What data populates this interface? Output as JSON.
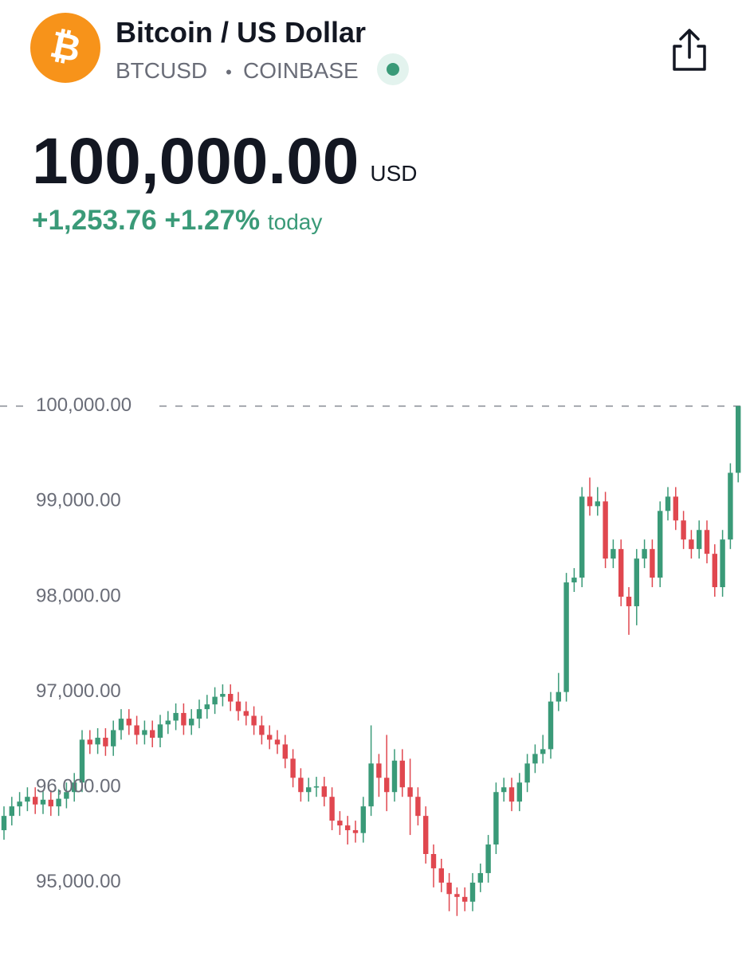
{
  "header": {
    "title": "Bitcoin / US Dollar",
    "symbol": "BTCUSD",
    "separator": "•",
    "exchange": "COINBASE",
    "logo": "₿"
  },
  "price": {
    "value": "100,000.00",
    "currency": "USD",
    "change": "+1,253.76",
    "change_percent": "+1.27%",
    "period": "today"
  },
  "chart_data": {
    "type": "candlestick",
    "up_color": "#3a9a78",
    "down_color": "#e0474f",
    "ylim": [
      94230,
      100750
    ],
    "yticks": [
      {
        "value": 95000,
        "label": "95,000.00"
      },
      {
        "value": 96000,
        "label": "96,000.00"
      },
      {
        "value": 97000,
        "label": "97,000.00"
      },
      {
        "value": 98000,
        "label": "98,000.00"
      },
      {
        "value": 99000,
        "label": "99,000.00"
      },
      {
        "value": 100000,
        "label": "100,000.00"
      }
    ],
    "open": [
      95550,
      95700,
      95800,
      95850,
      95900,
      95820,
      95870,
      95800,
      95880,
      95950,
      96050,
      96500,
      96450,
      96520,
      96430,
      96600,
      96720,
      96650,
      96550,
      96600,
      96520,
      96660,
      96700,
      96780,
      96650,
      96720,
      96820,
      96870,
      96950,
      96980,
      96900,
      96800,
      96750,
      96650,
      96550,
      96500,
      96450,
      96300,
      96100,
      95950,
      96000,
      96010,
      95900,
      95650,
      95600,
      95550,
      95520,
      95800,
      96250,
      96100,
      95950,
      96280,
      96000,
      95900,
      95700,
      95300,
      95150,
      95000,
      94880,
      94850,
      94800,
      95000,
      95100,
      95400,
      95950,
      96000,
      95850,
      96050,
      96250,
      96350,
      96400,
      96900,
      97000,
      98150,
      98200,
      99050,
      98950,
      99000,
      98400,
      98500,
      98000,
      97900,
      98400,
      98500,
      98200,
      98900,
      99050,
      98800,
      98600,
      98500,
      98700,
      98450,
      98100,
      98600,
      99300
    ],
    "high": [
      95800,
      95900,
      95950,
      96000,
      96000,
      95970,
      95970,
      95980,
      96050,
      96150,
      96600,
      96600,
      96620,
      96620,
      96700,
      96820,
      96820,
      96750,
      96700,
      96700,
      96760,
      96800,
      96880,
      96880,
      96820,
      96920,
      96970,
      97050,
      97080,
      97080,
      97000,
      96900,
      96850,
      96750,
      96650,
      96600,
      96550,
      96400,
      96200,
      96100,
      96110,
      96110,
      96000,
      95750,
      95700,
      95650,
      95900,
      96650,
      96350,
      96550,
      96400,
      96400,
      96300,
      96000,
      95800,
      95400,
      95250,
      95100,
      94950,
      94950,
      95100,
      95200,
      95500,
      96050,
      96100,
      96100,
      96150,
      96350,
      96450,
      96550,
      97000,
      97200,
      98250,
      98300,
      99150,
      99250,
      99150,
      99100,
      98600,
      98600,
      98100,
      98500,
      98600,
      98600,
      99000,
      99150,
      99150,
      98900,
      98700,
      98800,
      98800,
      98550,
      98700,
      99400,
      100000
    ],
    "low": [
      95450,
      95600,
      95700,
      95750,
      95720,
      95720,
      95700,
      95700,
      95780,
      95850,
      95950,
      96350,
      96350,
      96330,
      96330,
      96500,
      96550,
      96450,
      96450,
      96420,
      96420,
      96560,
      96600,
      96550,
      96550,
      96620,
      96720,
      96770,
      96850,
      96800,
      96700,
      96650,
      96550,
      96450,
      96400,
      96350,
      96200,
      96000,
      95850,
      95850,
      95900,
      95800,
      95550,
      95500,
      95400,
      95420,
      95420,
      95700,
      95900,
      95750,
      95850,
      95900,
      95500,
      95600,
      95200,
      94950,
      94900,
      94700,
      94650,
      94700,
      94700,
      94900,
      95000,
      95300,
      95850,
      95750,
      95750,
      95950,
      96150,
      96250,
      96300,
      96800,
      96900,
      98050,
      98100,
      98850,
      98850,
      98300,
      98300,
      97900,
      97600,
      97700,
      98300,
      98100,
      98100,
      98800,
      98700,
      98500,
      98400,
      98400,
      98350,
      98000,
      98000,
      98500,
      99200
    ],
    "close": [
      95700,
      95800,
      95850,
      95900,
      95820,
      95870,
      95800,
      95880,
      95950,
      96050,
      96500,
      96450,
      96520,
      96430,
      96600,
      96720,
      96650,
      96550,
      96600,
      96520,
      96660,
      96700,
      96780,
      96650,
      96720,
      96820,
      96870,
      96950,
      96980,
      96900,
      96800,
      96750,
      96650,
      96550,
      96500,
      96450,
      96300,
      96100,
      95950,
      96000,
      96010,
      95900,
      95650,
      95600,
      95550,
      95520,
      95800,
      96250,
      96100,
      95950,
      96280,
      96000,
      95900,
      95700,
      95300,
      95150,
      95000,
      94880,
      94850,
      94800,
      95000,
      95100,
      95400,
      95950,
      96000,
      95850,
      96050,
      96250,
      96350,
      96400,
      96900,
      97000,
      98150,
      98200,
      99050,
      98950,
      99000,
      98400,
      98500,
      98000,
      97900,
      98400,
      98500,
      98200,
      98900,
      99050,
      98800,
      98600,
      98500,
      98700,
      98450,
      98100,
      98600,
      99300,
      100000
    ]
  }
}
